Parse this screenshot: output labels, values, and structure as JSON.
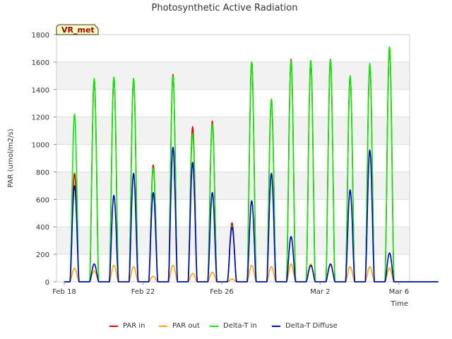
{
  "chart_data": {
    "type": "line",
    "title": "Photosynthetic Active Radiation",
    "xlabel": "Time",
    "ylabel": "PAR (umol/m2/s)",
    "site_label": "VR_met",
    "ylim": [
      0,
      1800
    ],
    "yticks": [
      0,
      200,
      400,
      600,
      800,
      1000,
      1200,
      1400,
      1600,
      1800
    ],
    "xlim": [
      "2024-02-18",
      "2024-03-08"
    ],
    "xticks": [
      {
        "date": "2024-02-18",
        "label": "Feb 18"
      },
      {
        "date": "2024-02-22",
        "label": "Feb 22"
      },
      {
        "date": "2024-02-26",
        "label": "Feb 26"
      },
      {
        "date": "2024-03-02",
        "label": "Mar 2"
      },
      {
        "date": "2024-03-06",
        "label": "Mar 6"
      }
    ],
    "grid": "horizontal bands",
    "legend_position": "bottom",
    "day_dates": [
      "2024-02-18",
      "2024-02-19",
      "2024-02-20",
      "2024-02-21",
      "2024-02-22",
      "2024-02-23",
      "2024-02-24",
      "2024-02-25",
      "2024-02-26",
      "2024-02-27",
      "2024-02-28",
      "2024-02-29",
      "2024-03-01",
      "2024-03-02",
      "2024-03-03",
      "2024-03-04",
      "2024-03-05",
      "2024-03-06",
      "2024-03-07"
    ],
    "series": [
      {
        "name": "PAR in",
        "color": "#dd0000",
        "daily_peak": [
          790,
          1470,
          1490,
          1480,
          850,
          1510,
          1130,
          1170,
          430,
          1600,
          1330,
          1620,
          1610,
          1620,
          1500,
          1580,
          1710,
          0,
          0
        ]
      },
      {
        "name": "PAR out",
        "color": "#ffa500",
        "daily_peak": [
          100,
          80,
          120,
          110,
          40,
          120,
          60,
          70,
          20,
          120,
          110,
          130,
          130,
          120,
          110,
          110,
          100,
          0,
          0
        ]
      },
      {
        "name": "Delta-T in",
        "color": "#00ee00",
        "daily_peak": [
          1220,
          1480,
          1490,
          1480,
          830,
          1500,
          1080,
          1150,
          410,
          1600,
          1330,
          1610,
          1610,
          1620,
          1500,
          1590,
          1710,
          0,
          0
        ]
      },
      {
        "name": "Delta-T Diffuse",
        "color": "#0000cc",
        "daily_peak": [
          700,
          130,
          630,
          790,
          650,
          980,
          870,
          650,
          400,
          590,
          790,
          330,
          120,
          130,
          670,
          960,
          210,
          0,
          0
        ]
      }
    ]
  }
}
